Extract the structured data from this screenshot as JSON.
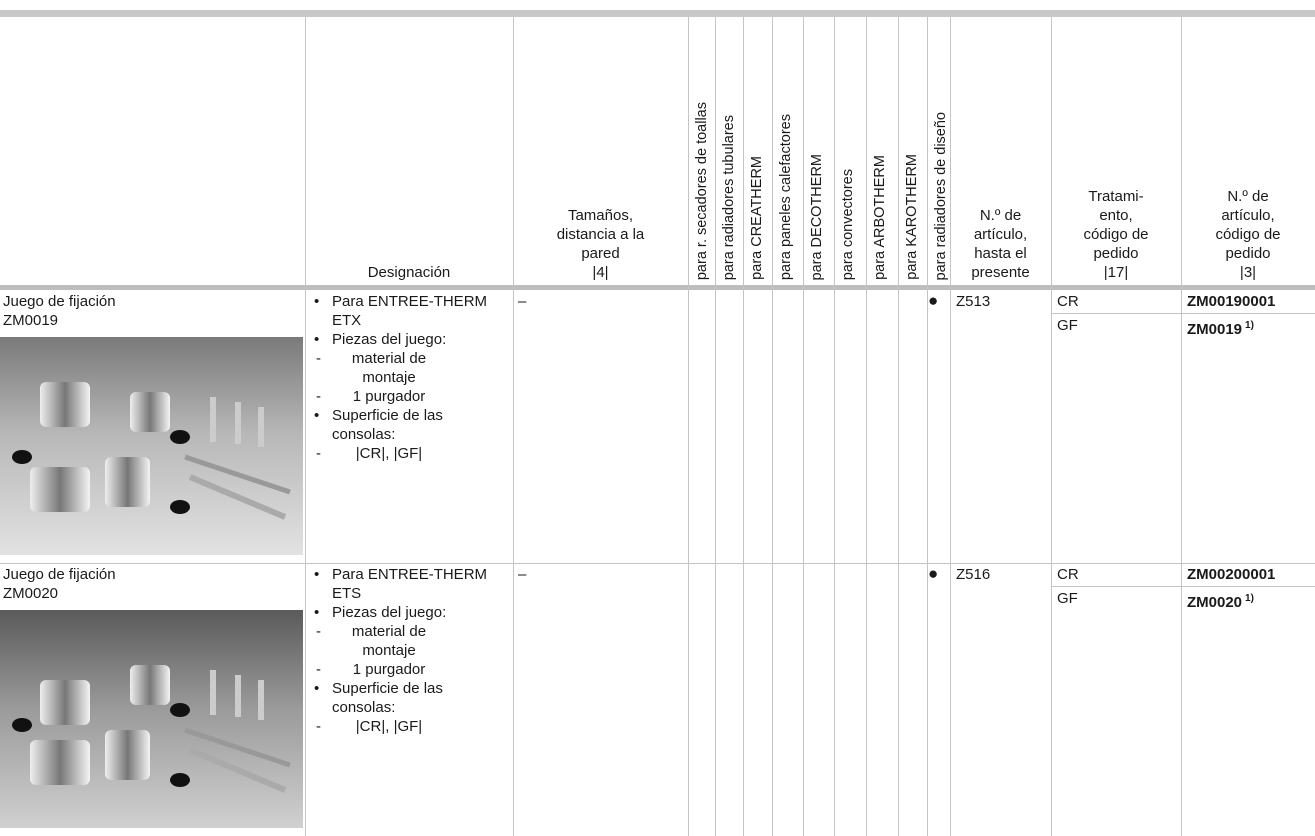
{
  "header": {
    "columns": [
      {
        "lines": [
          "Designación"
        ]
      },
      {
        "lines": [
          "Tamaños,",
          "distancia a la",
          "pared",
          "|4|"
        ]
      },
      {
        "lines": [
          "N.º de",
          "artículo,",
          "hasta el",
          "presente"
        ]
      },
      {
        "lines": [
          "Tratami-",
          "ento,",
          "código de",
          "pedido",
          "|17|"
        ]
      },
      {
        "lines": [
          "N.º de",
          "artículo,",
          "código de",
          "pedido",
          "|3|"
        ]
      }
    ],
    "rotated": [
      "para r. secadores de toallas",
      "para radiadores tubulares",
      "para CREATHERM",
      "para paneles calefactores",
      "para DECOTHERM",
      "para convectores",
      "para ARBOTHERM",
      "para KAROTHERM",
      "para radiadores de diseño"
    ]
  },
  "rows": [
    {
      "name": "Juego de fijación",
      "code": "ZM0019",
      "designation": [
        {
          "text": "Para ENTREE-THERM ETX"
        },
        {
          "text": "Piezas del juego:",
          "sub": [
            "material de montaje",
            "1 purgador"
          ]
        },
        {
          "text": "Superficie de las consolas:",
          "sub": [
            "|CR|, |GF|"
          ]
        }
      ],
      "size": "–",
      "mark": "●",
      "previous_number": "Z513",
      "variants": [
        {
          "treatment": "CR",
          "article": "ZM00190001"
        },
        {
          "treatment": "GF",
          "article": "ZM0019",
          "footnote": "1)"
        }
      ]
    },
    {
      "name": "Juego de fijación",
      "code": "ZM0020",
      "designation": [
        {
          "text": "Para ENTREE-THERM ETS"
        },
        {
          "text": "Piezas del juego:",
          "sub": [
            "material de montaje",
            "1 purgador"
          ]
        },
        {
          "text": "Superficie de las consolas:",
          "sub": [
            "|CR|, |GF|"
          ]
        }
      ],
      "size": "–",
      "mark": "●",
      "previous_number": "Z516",
      "variants": [
        {
          "treatment": "CR",
          "article": "ZM00200001"
        },
        {
          "treatment": "GF",
          "article": "ZM0020",
          "footnote": "1)"
        }
      ]
    }
  ]
}
